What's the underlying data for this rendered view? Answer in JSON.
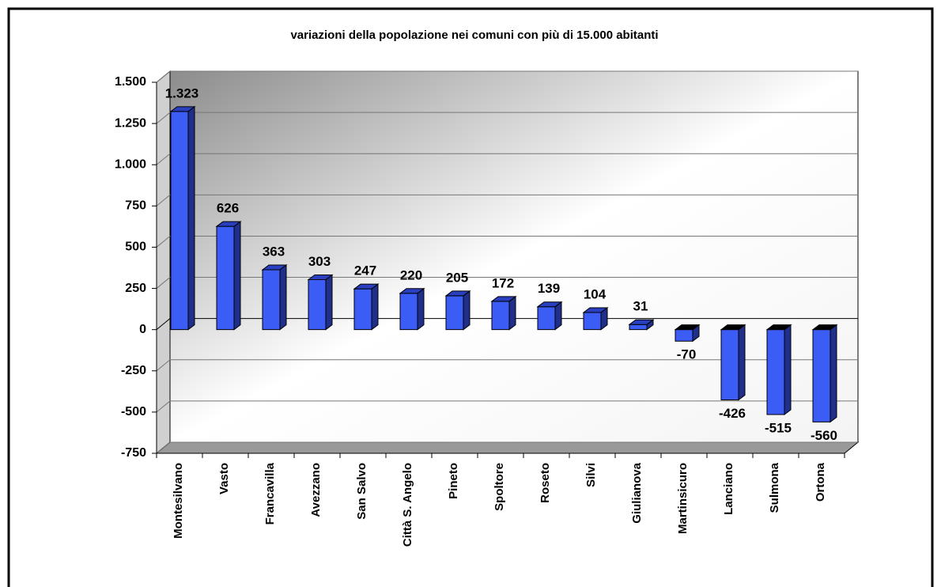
{
  "chart_data": {
    "type": "bar",
    "title": "variazioni della popolazione nei comuni con più di 15.000 abitanti",
    "categories": [
      "Montesilvano",
      "Vasto",
      "Francavilla",
      "Avezzano",
      "San Salvo",
      "Città S. Angelo",
      "Pineto",
      "Spoltore",
      "Roseto",
      "Silvi",
      "Giulianova",
      "Martinsicuro",
      "Lanciano",
      "Sulmona",
      "Ortona"
    ],
    "values": [
      1323,
      626,
      363,
      303,
      247,
      220,
      205,
      172,
      139,
      104,
      31,
      -70,
      -426,
      -515,
      -560
    ],
    "value_labels": [
      "1.323",
      "626",
      "363",
      "303",
      "247",
      "220",
      "205",
      "172",
      "139",
      "104",
      "31",
      "-70",
      "-426",
      "-515",
      "-560"
    ],
    "color": "#3b5cf5",
    "ylim": [
      -750,
      1500
    ],
    "yticks": [
      -750,
      -500,
      -250,
      0,
      250,
      500,
      750,
      {
        "value": 1000,
        "label": "1.000"
      },
      {
        "value": 1250,
        "label": "1.250"
      },
      {
        "value": 1500,
        "label": "1.500"
      }
    ],
    "grid": true
  }
}
